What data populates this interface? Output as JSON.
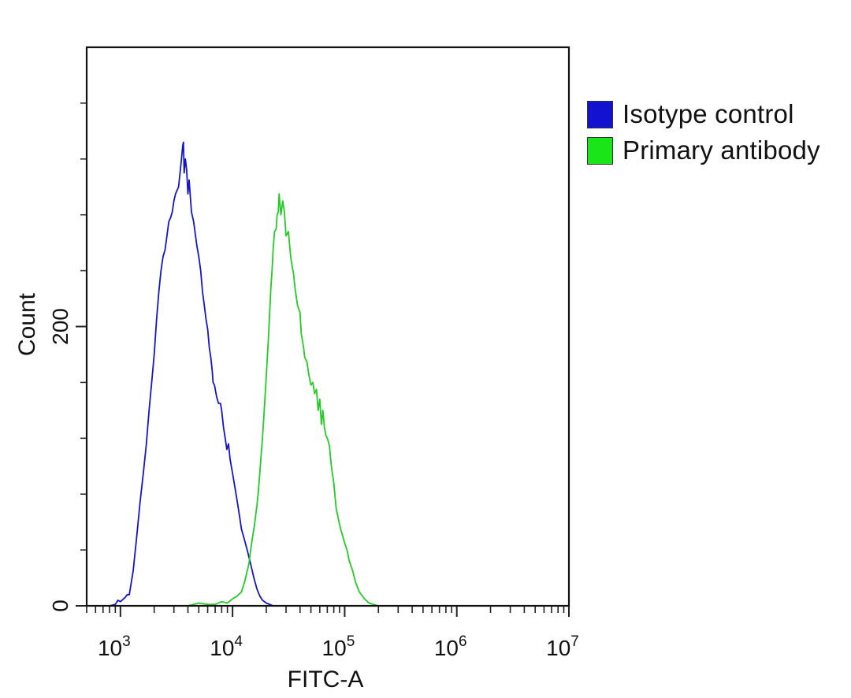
{
  "chart_data": {
    "type": "line",
    "title": "",
    "xlabel": "FITC-A",
    "ylabel": "Count",
    "x_scale": "log",
    "xlim": [
      500,
      10000000
    ],
    "ylim": [
      0,
      400
    ],
    "x_tick_labels": [
      {
        "base": "10",
        "exp": "3",
        "value": 1000
      },
      {
        "base": "10",
        "exp": "4",
        "value": 10000
      },
      {
        "base": "10",
        "exp": "5",
        "value": 100000
      },
      {
        "base": "10",
        "exp": "6",
        "value": 1000000
      },
      {
        "base": "10",
        "exp": "7",
        "value": 10000000
      }
    ],
    "y_ticks_labeled": [
      {
        "label": "0",
        "value": 0
      },
      {
        "label": "200",
        "value": 200
      }
    ],
    "y_ticks_unlabeled": [
      40,
      80,
      120,
      160,
      240,
      280,
      320,
      360
    ],
    "legend_position": "top-right outside",
    "series": [
      {
        "name": "Isotype control",
        "color": "#1515c8",
        "legend_color": "#1212d0",
        "points": [
          [
            800,
            0
          ],
          [
            900,
            1
          ],
          [
            950,
            4
          ],
          [
            1000,
            3
          ],
          [
            1100,
            6
          ],
          [
            1150,
            8
          ],
          [
            1200,
            8
          ],
          [
            1300,
            25
          ],
          [
            1400,
            50
          ],
          [
            1500,
            75
          ],
          [
            1600,
            95
          ],
          [
            1700,
            115
          ],
          [
            1800,
            140
          ],
          [
            1900,
            160
          ],
          [
            2000,
            180
          ],
          [
            2100,
            205
          ],
          [
            2200,
            225
          ],
          [
            2300,
            240
          ],
          [
            2400,
            250
          ],
          [
            2500,
            255
          ],
          [
            2600,
            265
          ],
          [
            2700,
            275
          ],
          [
            2800,
            278
          ],
          [
            2900,
            282
          ],
          [
            3000,
            290
          ],
          [
            3100,
            295
          ],
          [
            3300,
            300
          ],
          [
            3400,
            310
          ],
          [
            3500,
            320
          ],
          [
            3600,
            330
          ],
          [
            3650,
            332
          ],
          [
            3700,
            310
          ],
          [
            3800,
            320
          ],
          [
            3900,
            312
          ],
          [
            4000,
            295
          ],
          [
            4100,
            305
          ],
          [
            4300,
            282
          ],
          [
            4500,
            275
          ],
          [
            4800,
            258
          ],
          [
            5000,
            250
          ],
          [
            5200,
            240
          ],
          [
            5400,
            225
          ],
          [
            5600,
            215
          ],
          [
            5800,
            205
          ],
          [
            6000,
            198
          ],
          [
            6200,
            185
          ],
          [
            6400,
            178
          ],
          [
            6600,
            168
          ],
          [
            6700,
            160
          ],
          [
            6900,
            158
          ],
          [
            7200,
            150
          ],
          [
            7500,
            145
          ],
          [
            7800,
            145
          ],
          [
            8000,
            140
          ],
          [
            8300,
            128
          ],
          [
            8600,
            120
          ],
          [
            8900,
            112
          ],
          [
            9200,
            116
          ],
          [
            9500,
            105
          ],
          [
            10000,
            95
          ],
          [
            10500,
            85
          ],
          [
            11000,
            75
          ],
          [
            11500,
            65
          ],
          [
            12000,
            55
          ],
          [
            12700,
            48
          ],
          [
            13500,
            40
          ],
          [
            14500,
            30
          ],
          [
            15500,
            20
          ],
          [
            16500,
            12
          ],
          [
            17500,
            7
          ],
          [
            18500,
            4
          ],
          [
            20000,
            2
          ],
          [
            23000,
            0
          ]
        ]
      },
      {
        "name": "Primary antibody",
        "color": "#22cc22",
        "legend_color": "#19e619",
        "points": [
          [
            1200,
            0
          ],
          [
            4000,
            0
          ],
          [
            5000,
            2
          ],
          [
            6000,
            1
          ],
          [
            7000,
            1
          ],
          [
            8000,
            3
          ],
          [
            9000,
            2
          ],
          [
            10000,
            5
          ],
          [
            11000,
            7
          ],
          [
            12000,
            10
          ],
          [
            12800,
            17
          ],
          [
            13500,
            25
          ],
          [
            14000,
            30
          ],
          [
            14500,
            40
          ],
          [
            15000,
            48
          ],
          [
            15700,
            58
          ],
          [
            16500,
            72
          ],
          [
            17000,
            82
          ],
          [
            17500,
            95
          ],
          [
            18000,
            108
          ],
          [
            18500,
            120
          ],
          [
            19000,
            135
          ],
          [
            19500,
            150
          ],
          [
            20000,
            165
          ],
          [
            20500,
            180
          ],
          [
            21000,
            195
          ],
          [
            21500,
            212
          ],
          [
            22000,
            228
          ],
          [
            22700,
            245
          ],
          [
            23000,
            255
          ],
          [
            23700,
            268
          ],
          [
            24500,
            270
          ],
          [
            25000,
            280
          ],
          [
            25600,
            282
          ],
          [
            26000,
            295
          ],
          [
            27000,
            280
          ],
          [
            28000,
            290
          ],
          [
            29000,
            282
          ],
          [
            30000,
            265
          ],
          [
            31500,
            268
          ],
          [
            33000,
            250
          ],
          [
            34000,
            243
          ],
          [
            35000,
            238
          ],
          [
            36000,
            228
          ],
          [
            38000,
            215
          ],
          [
            40000,
            210
          ],
          [
            41000,
            195
          ],
          [
            43000,
            185
          ],
          [
            44000,
            178
          ],
          [
            46000,
            175
          ],
          [
            48000,
            165
          ],
          [
            50000,
            158
          ],
          [
            52000,
            160
          ],
          [
            54000,
            152
          ],
          [
            56000,
            155
          ],
          [
            58000,
            140
          ],
          [
            60000,
            148
          ],
          [
            62000,
            130
          ],
          [
            64000,
            140
          ],
          [
            66000,
            128
          ],
          [
            68000,
            122
          ],
          [
            70000,
            120
          ],
          [
            73000,
            115
          ],
          [
            76000,
            100
          ],
          [
            80000,
            88
          ],
          [
            84000,
            70
          ],
          [
            88000,
            62
          ],
          [
            92000,
            55
          ],
          [
            96000,
            50
          ],
          [
            100000,
            45
          ],
          [
            105000,
            40
          ],
          [
            110000,
            32
          ],
          [
            118000,
            25
          ],
          [
            125000,
            17
          ],
          [
            135000,
            10
          ],
          [
            150000,
            5
          ],
          [
            165000,
            2
          ],
          [
            180000,
            1
          ],
          [
            200000,
            0
          ]
        ]
      }
    ]
  }
}
